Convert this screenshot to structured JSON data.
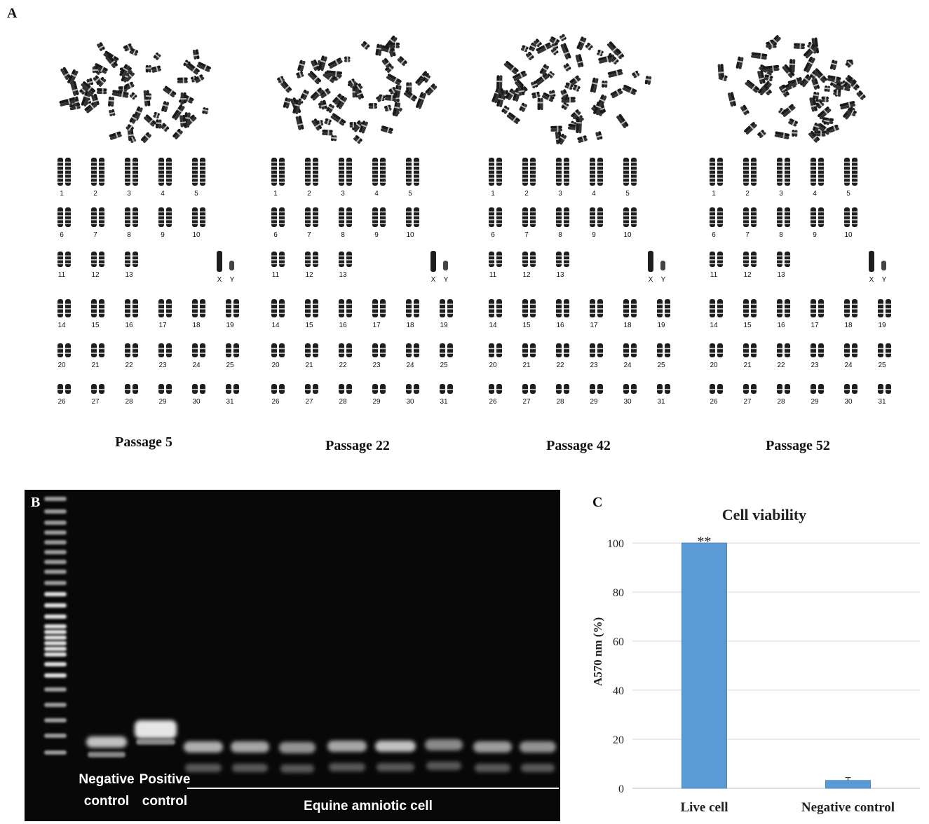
{
  "panels": {
    "a": {
      "letter": "A"
    },
    "b": {
      "letter": "B"
    },
    "c": {
      "letter": "C"
    }
  },
  "karyotype": {
    "passages": [
      {
        "label": "Passage 5"
      },
      {
        "label": "Passage 22"
      },
      {
        "label": "Passage 42"
      },
      {
        "label": "Passage 52"
      }
    ],
    "rows": [
      [
        "1",
        "2",
        "3",
        "4",
        "5"
      ],
      [
        "6",
        "7",
        "8",
        "9",
        "10"
      ],
      [
        "11",
        "12",
        "13"
      ],
      [
        "14",
        "15",
        "16",
        "17",
        "18",
        "19"
      ],
      [
        "20",
        "21",
        "22",
        "23",
        "24",
        "25"
      ],
      [
        "26",
        "27",
        "28",
        "29",
        "30",
        "31"
      ]
    ],
    "sex_labels": [
      "X",
      "Y"
    ]
  },
  "gel": {
    "negative_label": [
      "Negative",
      "control"
    ],
    "positive_label": [
      "Positive",
      "control"
    ],
    "sample_label": "Equine amniotic cell"
  },
  "chart_data": {
    "type": "bar",
    "title": "Cell viability",
    "ylabel": "A570 nm (%)",
    "xlabel": "",
    "categories": [
      "Live cell",
      "Negative control"
    ],
    "values": [
      100,
      3.2
    ],
    "errors": [
      0,
      1.2
    ],
    "annotations": [
      "**",
      ""
    ],
    "ylim": [
      0,
      100
    ],
    "yticks": [
      "0",
      "20",
      "40",
      "60",
      "80",
      "100"
    ],
    "grid": true,
    "bar_color": "#5b9bd5"
  }
}
